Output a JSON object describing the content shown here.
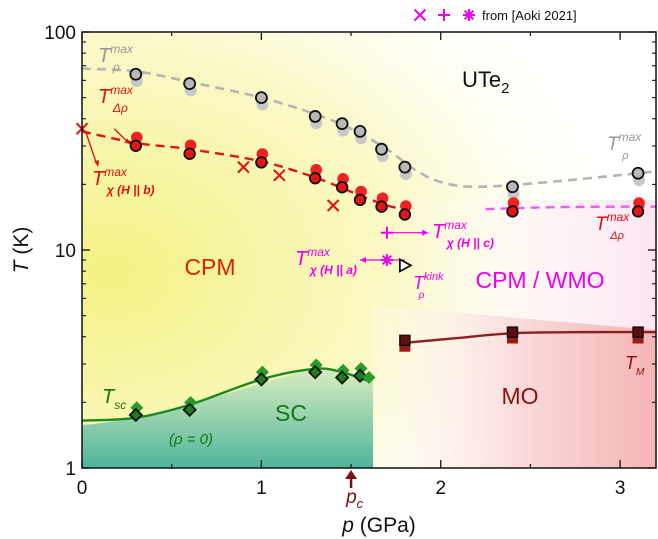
{
  "chart_data": {
    "type": "scatter",
    "title": "UTe2",
    "xlabel": "p (GPa)",
    "ylabel": "T (K)",
    "xlim": [
      0,
      3.2
    ],
    "ylim": [
      1,
      100
    ],
    "yscale": "log",
    "x_ticks": [
      0,
      1,
      2,
      3
    ],
    "x_tick_labels": [
      "0",
      "1",
      "2",
      "3"
    ],
    "y_ticks": [
      1,
      10,
      100
    ],
    "y_tick_labels": [
      "1",
      "10",
      "100"
    ],
    "grid": false,
    "legend": {
      "placement": "top-right",
      "text": "from [Aoki 2021]",
      "marker_names": [
        "x",
        "+",
        "*"
      ],
      "color": "#ee00ee"
    },
    "regions": [
      {
        "label": "CPM",
        "color": "#dd2200"
      },
      {
        "label": "CPM / WMO",
        "color": "#ee00ee"
      },
      {
        "label": "SC",
        "color": "#117711"
      },
      {
        "label": "MO",
        "color": "#881111"
      },
      {
        "label": "(ρ = 0)",
        "color": "#117711"
      }
    ],
    "pc_label": "p",
    "pc_sub": "c",
    "pc_value": 1.5,
    "series": [
      {
        "name": "T_rho_max",
        "label": "T",
        "sup": "max",
        "sub": "ρ",
        "color": "#999999",
        "x": [
          0.3,
          0.6,
          1.0,
          1.3,
          1.45,
          1.55,
          1.67,
          1.8,
          2.4,
          3.1
        ],
        "y": [
          64,
          58,
          50,
          41,
          38,
          35,
          29,
          24,
          19.5,
          22.5
        ]
      },
      {
        "name": "T_drho_max",
        "label": "T",
        "sup": "max",
        "sub": "Δρ",
        "color": "#dd1111",
        "x": [
          0.3,
          0.6,
          1.0,
          1.3,
          1.45,
          1.55,
          1.67,
          1.8,
          2.4,
          3.1
        ],
        "y": [
          31,
          28.5,
          26,
          22,
          20,
          17.5,
          16.3,
          15,
          15.5,
          15.5
        ]
      },
      {
        "name": "T_chi_max_b",
        "label": "T",
        "sup": "max",
        "sub": "χ (H || b)",
        "color": "#dd1111",
        "x": [
          0,
          0.9,
          1.1,
          1.4
        ],
        "y": [
          36,
          24,
          22,
          16
        ]
      },
      {
        "name": "T_chi_max_c",
        "label": "T",
        "sup": "max",
        "sub": "χ (H || c)",
        "color": "#ee00ee",
        "x": [
          1.7
        ],
        "y": [
          12
        ]
      },
      {
        "name": "T_chi_max_a",
        "label": "T",
        "sup": "max",
        "sub": "χ (H || a)",
        "color": "#ee00ee",
        "x": [
          1.7
        ],
        "y": [
          9
        ]
      },
      {
        "name": "T_rho_kink",
        "label": "T",
        "sup": "kink",
        "sub": "ρ",
        "color": "#ee00ee",
        "x": [
          1.8
        ],
        "y": [
          8.5
        ]
      },
      {
        "name": "T_sc",
        "label": "T",
        "sub": "sc",
        "color": "#117711",
        "x": [
          0.3,
          0.6,
          1.0,
          1.3,
          1.45,
          1.55
        ],
        "y": [
          1.75,
          1.85,
          2.55,
          2.75,
          2.6,
          2.65
        ]
      },
      {
        "name": "T_M",
        "label": "T",
        "sub": "M",
        "color": "#881111",
        "x": [
          1.8,
          2.4,
          3.1
        ],
        "y": [
          3.85,
          4.2,
          4.2
        ]
      }
    ]
  }
}
